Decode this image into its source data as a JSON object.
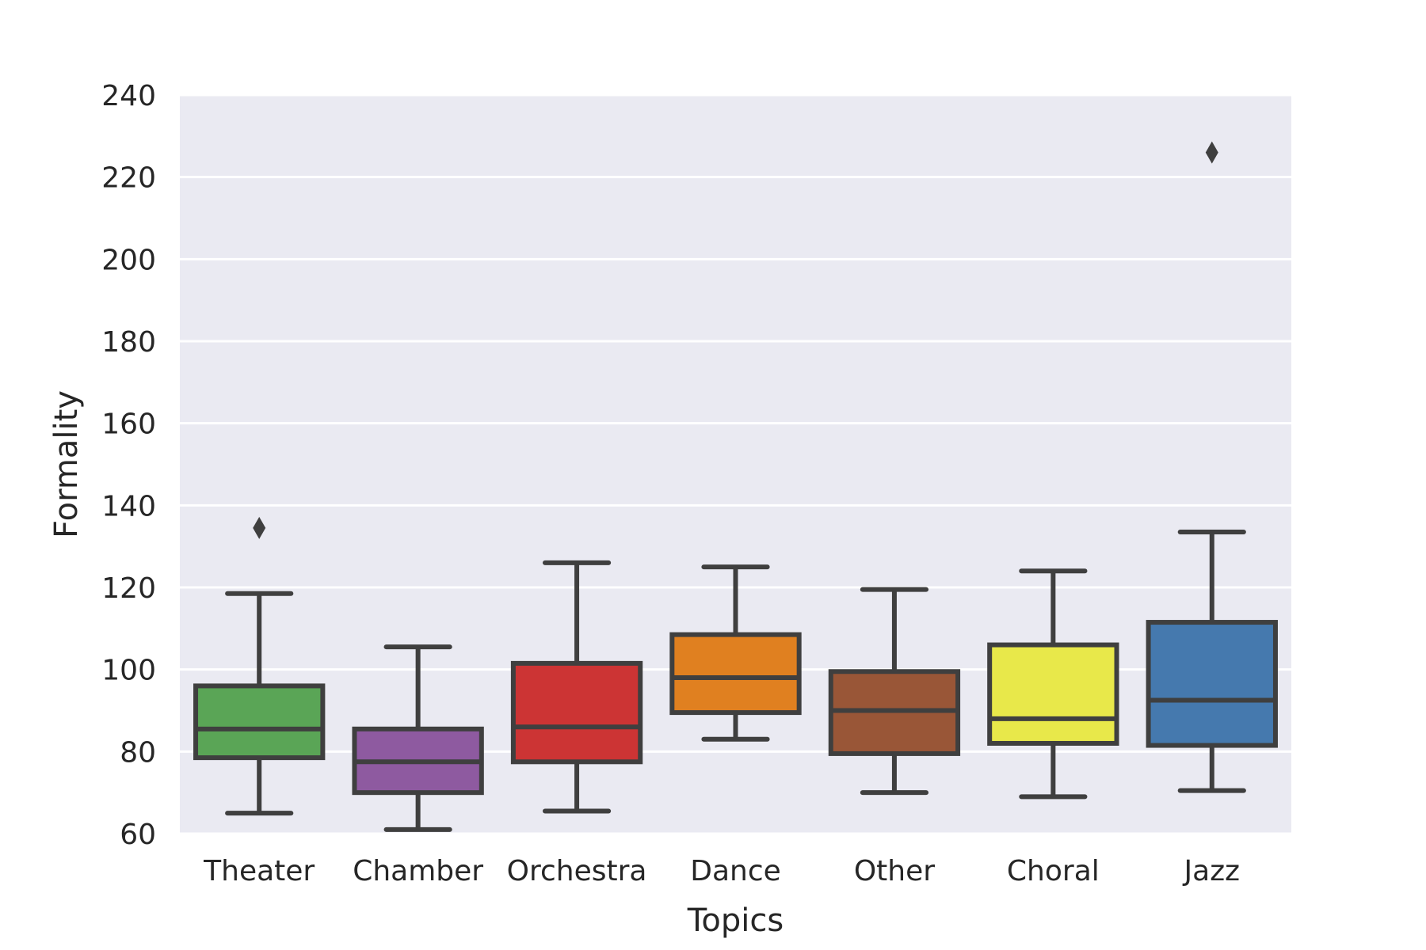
{
  "chart_data": {
    "type": "box",
    "title": "",
    "xlabel": "Topics",
    "ylabel": "Formality",
    "ylim": [
      60,
      240
    ],
    "yticks": [
      60,
      80,
      100,
      120,
      140,
      160,
      180,
      200,
      220,
      240
    ],
    "grid": true,
    "categories": [
      "Theater",
      "Chamber",
      "Orchestra",
      "Dance",
      "Other",
      "Choral",
      "Jazz"
    ],
    "colors": [
      "#5aa556",
      "#8e5aa0",
      "#cc3434",
      "#e08020",
      "#995637",
      "#e8e84a",
      "#4579ae"
    ],
    "boxes": [
      {
        "whisker_low": 65,
        "q1": 78.5,
        "median": 85.5,
        "q3": 96,
        "whisker_high": 118.5,
        "outliers": [
          134.5
        ]
      },
      {
        "whisker_low": 61,
        "q1": 70,
        "median": 77.5,
        "q3": 85.5,
        "whisker_high": 105.5,
        "outliers": []
      },
      {
        "whisker_low": 65.5,
        "q1": 77.5,
        "median": 86,
        "q3": 101.5,
        "whisker_high": 126,
        "outliers": []
      },
      {
        "whisker_low": 83,
        "q1": 89.5,
        "median": 98,
        "q3": 108.5,
        "whisker_high": 125,
        "outliers": []
      },
      {
        "whisker_low": 70,
        "q1": 79.5,
        "median": 90,
        "q3": 99.5,
        "whisker_high": 119.5,
        "outliers": []
      },
      {
        "whisker_low": 69,
        "q1": 82,
        "median": 88,
        "q3": 106,
        "whisker_high": 124,
        "outliers": []
      },
      {
        "whisker_low": 70.5,
        "q1": 81.5,
        "median": 92.5,
        "q3": 111.5,
        "whisker_high": 133.5,
        "outliers": [
          226
        ]
      }
    ]
  }
}
